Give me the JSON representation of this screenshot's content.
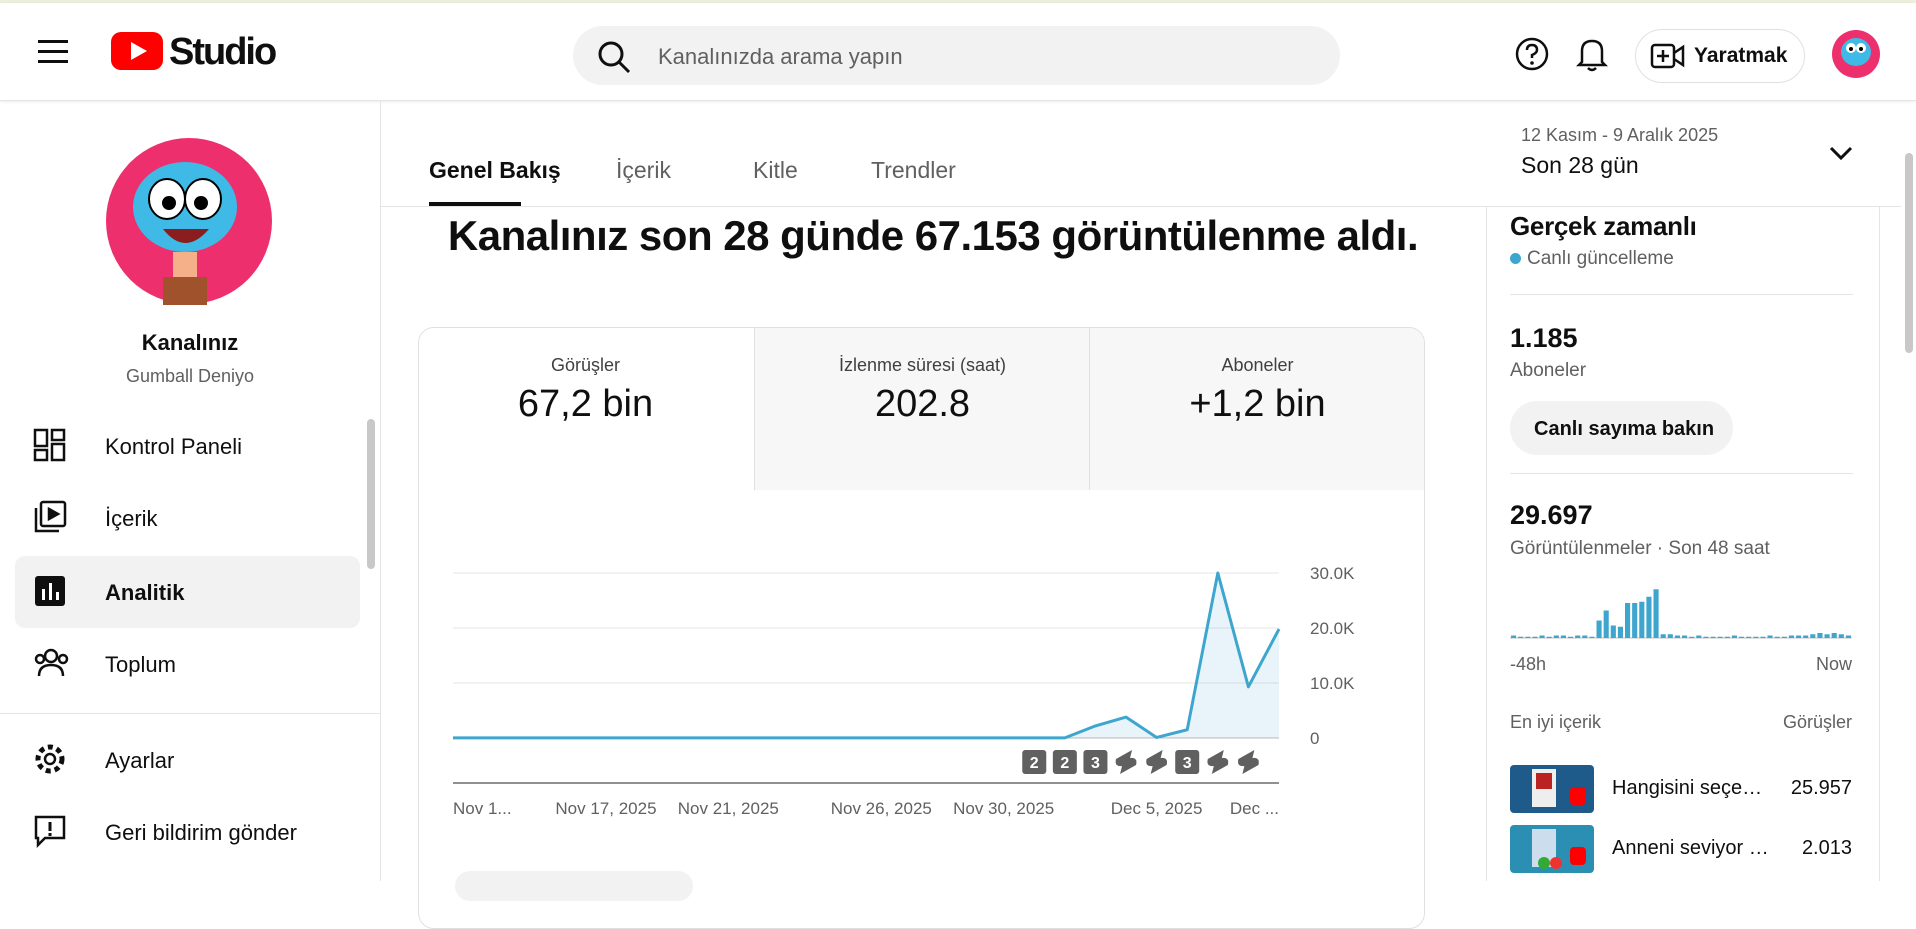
{
  "header": {
    "logo_text": "Studio",
    "search_placeholder": "Kanalınızda arama yapın",
    "create_button": "Yaratmak"
  },
  "sidebar": {
    "channel_title": "Kanalınız",
    "channel_name": "Gumball Deniyo",
    "nav": [
      "Kontrol Paneli",
      "İçerik",
      "Analitik",
      "Toplum"
    ],
    "bottom_nav": [
      "Ayarlar",
      "Geri bildirim gönder"
    ]
  },
  "tabs": [
    "Genel Bakış",
    "İçerik",
    "Kitle",
    "Trendler"
  ],
  "date_range": {
    "range": "12 Kasım - 9 Aralık 2025",
    "label": "Son 28 gün"
  },
  "headline": "Kanalınız son 28 günde 67.153 görüntülenme aldı.",
  "metrics": [
    {
      "label": "Görüşler",
      "value": "67,2 bin"
    },
    {
      "label": "İzlenme süresi (saat)",
      "value": "202.8"
    },
    {
      "label": "Aboneler",
      "value": "+1,2 bin"
    }
  ],
  "realtime": {
    "title": "Gerçek zamanlı",
    "status": "Canlı güncelleme",
    "subscribers": "1.185",
    "subscribers_label": "Aboneler",
    "button": "Canlı sayıma bakın",
    "views": "29.697",
    "views_label": "Görüntülenmeler · Son 48 saat",
    "top_content_label": "En iyi içerik",
    "top_content_metric": "Görüşler",
    "top_content": [
      {
        "title": "Hangisini seçe…",
        "views": "25.957"
      },
      {
        "title": "Anneni seviyor …",
        "views": "2.013"
      }
    ]
  },
  "chart_data": [
    {
      "type": "line",
      "categories": [
        "Nov 1...",
        null,
        null,
        null,
        null,
        "Nov 17, 2025",
        null,
        null,
        null,
        "Nov 21, 2025",
        null,
        null,
        null,
        null,
        "Nov 26, 2025",
        null,
        null,
        null,
        "Nov 30, 2025",
        null,
        null,
        null,
        null,
        "Dec 5, 2025",
        null,
        null,
        null,
        "Dec ..."
      ],
      "values": [
        20,
        20,
        20,
        20,
        20,
        20,
        20,
        20,
        20,
        20,
        20,
        20,
        20,
        20,
        20,
        20,
        20,
        20,
        20,
        20,
        20,
        2200,
        3800,
        100,
        1500,
        30000,
        9300,
        19800
      ],
      "color": "#3ea6ce",
      "area": true,
      "ylim": [
        0,
        30000
      ],
      "yticks": [
        0,
        {
          "value": 10000,
          "label": "10.0K"
        },
        {
          "value": 20000,
          "label": "20.0K"
        },
        {
          "value": 30000,
          "label": "30.0K"
        }
      ],
      "grid": true,
      "upload_markers": [
        null,
        null,
        null,
        null,
        null,
        null,
        null,
        null,
        null,
        null,
        null,
        null,
        null,
        null,
        null,
        null,
        null,
        null,
        null,
        "2",
        "2",
        "3",
        null,
        null,
        "3",
        null,
        null,
        null
      ]
    },
    {
      "type": "bar",
      "color": "#3ea6ce",
      "values": [
        2,
        1,
        1,
        1,
        2,
        1,
        2,
        2,
        1,
        2,
        2,
        1,
        14,
        22,
        10,
        9,
        28,
        28,
        29,
        33,
        39,
        3,
        3,
        2,
        2,
        1,
        2,
        1,
        1,
        1,
        1,
        2,
        1,
        1,
        1,
        1,
        2,
        1,
        1,
        2,
        2,
        2,
        3,
        4,
        3,
        4,
        3,
        2
      ],
      "ylim": [
        0,
        40
      ],
      "x_labels": [
        "-48h",
        "Now"
      ]
    }
  ]
}
